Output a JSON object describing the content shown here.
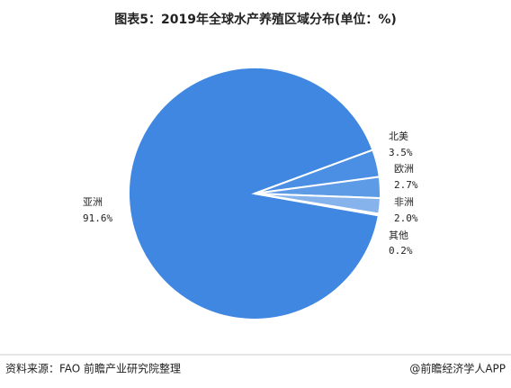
{
  "chart_data": {
    "type": "pie",
    "title": "图表5：2019年全球水产养殖区域分布(单位：%)",
    "categories": [
      "亚洲",
      "北美",
      "欧洲",
      "非洲",
      "其他"
    ],
    "values": [
      91.6,
      3.5,
      2.7,
      2.0,
      0.2
    ],
    "value_labels": [
      "91.6%",
      "3.5%",
      "2.7%",
      "2.0%",
      "0.2%"
    ],
    "colors": [
      "#3f87e1",
      "#4a8fe3",
      "#5d9be6",
      "#86b3ec",
      "#a9c9f2"
    ],
    "source": "资料来源：FAO 前瞻产业研究院整理",
    "brand": "@前瞻经济学人APP"
  }
}
